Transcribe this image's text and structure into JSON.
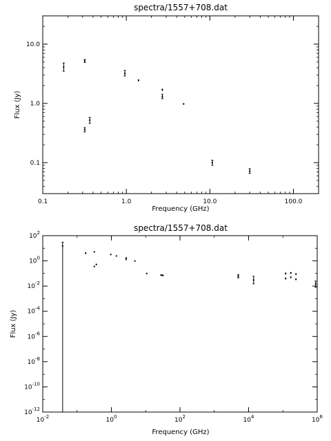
{
  "chart_data": [
    {
      "type": "scatter",
      "title": "spectra/1557+708.dat",
      "xlabel": "Frequency (GHz)",
      "ylabel": "Flux (Jy)",
      "xscale": "log",
      "yscale": "log",
      "xlim": [
        0.1,
        200
      ],
      "ylim": [
        0.03,
        30
      ],
      "grid": false,
      "xticks": [
        {
          "v": 0.1,
          "t": "0.1"
        },
        {
          "v": 1,
          "t": "1.0"
        },
        {
          "v": 10,
          "t": "10.0"
        },
        {
          "v": 100,
          "t": "100.0"
        }
      ],
      "yticks": [
        {
          "v": 0.1,
          "t": "0.1"
        },
        {
          "v": 1,
          "t": "1.0"
        },
        {
          "v": 10,
          "t": "10.0"
        }
      ],
      "points": [
        {
          "x": 0.178,
          "y": 4.1,
          "lo": 3.5,
          "hi": 4.8
        },
        {
          "x": 0.318,
          "y": 5.2,
          "lo": 4.9,
          "hi": 5.5
        },
        {
          "x": 0.318,
          "y": 0.36,
          "lo": 0.33,
          "hi": 0.39
        },
        {
          "x": 0.365,
          "y": 0.52,
          "lo": 0.46,
          "hi": 0.58
        },
        {
          "x": 0.96,
          "y": 3.2,
          "lo": 2.9,
          "hi": 3.6
        },
        {
          "x": 1.4,
          "y": 2.45,
          "lo": 2.35,
          "hi": 2.55
        },
        {
          "x": 2.7,
          "y": 1.7,
          "lo": 1.62,
          "hi": 1.78
        },
        {
          "x": 2.7,
          "y": 1.3,
          "lo": 1.2,
          "hi": 1.42
        },
        {
          "x": 4.85,
          "y": 0.98,
          "lo": 0.95,
          "hi": 1.01
        },
        {
          "x": 10.7,
          "y": 0.1,
          "lo": 0.09,
          "hi": 0.11
        },
        {
          "x": 30,
          "y": 0.072,
          "lo": 0.066,
          "hi": 0.079
        }
      ]
    },
    {
      "type": "scatter",
      "title": "spectra/1557+708.dat",
      "xlabel": "Frequency (GHz)",
      "ylabel": "Flux (Jy)",
      "xscale": "log",
      "yscale": "log",
      "xlim": [
        0.01,
        1000000
      ],
      "ylim": [
        1e-12,
        100
      ],
      "grid": false,
      "xticks": [
        {
          "v": 0.01,
          "b": "10",
          "e": "-2"
        },
        {
          "v": 1,
          "b": "10",
          "e": "0"
        },
        {
          "v": 100,
          "b": "10",
          "e": "2"
        },
        {
          "v": 10000,
          "b": "10",
          "e": "4"
        },
        {
          "v": 1000000,
          "b": "10",
          "e": "6"
        }
      ],
      "yticks": [
        {
          "v": 1e-12,
          "b": "10",
          "e": "-12"
        },
        {
          "v": 1e-10,
          "b": "10",
          "e": "-10"
        },
        {
          "v": 1e-08,
          "b": "10",
          "e": "-8"
        },
        {
          "v": 1e-06,
          "b": "10",
          "e": "-6"
        },
        {
          "v": 0.0001,
          "b": "10",
          "e": "-4"
        },
        {
          "v": 0.01,
          "b": "10",
          "e": "-2"
        },
        {
          "v": 1,
          "b": "10",
          "e": "0"
        },
        {
          "v": 100,
          "b": "10",
          "e": "2"
        }
      ],
      "points": [
        {
          "x": 0.038,
          "y": 15,
          "lo": 1e-12,
          "hi": 30
        },
        {
          "x": 0.178,
          "y": 4.1,
          "lo": 3.5,
          "hi": 4.8
        },
        {
          "x": 0.318,
          "y": 5.2,
          "lo": 4.9,
          "hi": 5.5
        },
        {
          "x": 0.318,
          "y": 0.36,
          "lo": 0.33,
          "hi": 0.39
        },
        {
          "x": 0.365,
          "y": 0.52,
          "lo": 0.46,
          "hi": 0.58
        },
        {
          "x": 0.96,
          "y": 3.2,
          "lo": 2.9,
          "hi": 3.6
        },
        {
          "x": 1.4,
          "y": 2.45,
          "lo": 2.35,
          "hi": 2.55
        },
        {
          "x": 2.7,
          "y": 1.7,
          "lo": 1.62,
          "hi": 1.78
        },
        {
          "x": 2.7,
          "y": 1.3,
          "lo": 1.2,
          "hi": 1.42
        },
        {
          "x": 4.85,
          "y": 0.98,
          "lo": 0.95,
          "hi": 1.01
        },
        {
          "x": 10.7,
          "y": 0.1,
          "lo": 0.09,
          "hi": 0.11
        },
        {
          "x": 28,
          "y": 0.075,
          "lo": 0.07,
          "hi": 0.08
        },
        {
          "x": 30,
          "y": 0.072,
          "lo": 0.066,
          "hi": 0.079
        },
        {
          "x": 32,
          "y": 0.07,
          "lo": 0.065,
          "hi": 0.076
        },
        {
          "x": 5000,
          "y": 0.06,
          "lo": 0.045,
          "hi": 0.08
        },
        {
          "x": 14000,
          "y": 0.03,
          "lo": 0.015,
          "hi": 0.06
        },
        {
          "x": 120000,
          "y": 0.1,
          "lo": 0.08,
          "hi": 0.12
        },
        {
          "x": 120000,
          "y": 0.04,
          "lo": 0.033,
          "hi": 0.048
        },
        {
          "x": 170000,
          "y": 0.11,
          "lo": 0.09,
          "hi": 0.13
        },
        {
          "x": 170000,
          "y": 0.05,
          "lo": 0.042,
          "hi": 0.058
        },
        {
          "x": 240000,
          "y": 0.09,
          "lo": 0.075,
          "hi": 0.105
        },
        {
          "x": 240000,
          "y": 0.035,
          "lo": 0.029,
          "hi": 0.041
        },
        {
          "x": 900000,
          "y": 0.015,
          "lo": 0.008,
          "hi": 0.025
        }
      ]
    }
  ]
}
